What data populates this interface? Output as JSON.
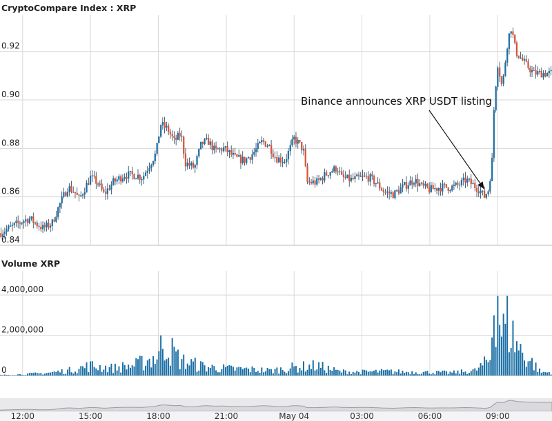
{
  "chart_data": [
    {
      "type": "candlestick",
      "title": "CryptoCompare Index : XRP",
      "ylim": [
        0.84,
        0.935
      ],
      "y_ticks": [
        "0.84",
        "0.86",
        "0.88",
        "0.90",
        "0.92"
      ],
      "x_ticks": [
        "12:00",
        "15:00",
        "18:00",
        "21:00",
        "May 04",
        "03:00",
        "06:00",
        "09:00"
      ],
      "x_range_hours": [
        11,
        35.4
      ],
      "grid": true,
      "colors": {
        "up": "#1f6fa3",
        "down": "#d8553a",
        "wick": "#1f3a52"
      },
      "close_path": [
        [
          11.0,
          0.845
        ],
        [
          11.6,
          0.848
        ],
        [
          12.0,
          0.85
        ],
        [
          12.3,
          0.851
        ],
        [
          12.6,
          0.849
        ],
        [
          12.9,
          0.847
        ],
        [
          13.3,
          0.849
        ],
        [
          13.6,
          0.856
        ],
        [
          14.0,
          0.864
        ],
        [
          14.3,
          0.862
        ],
        [
          14.5,
          0.859
        ],
        [
          15.0,
          0.868
        ],
        [
          15.3,
          0.866
        ],
        [
          15.6,
          0.861
        ],
        [
          16.0,
          0.866
        ],
        [
          16.5,
          0.869
        ],
        [
          17.0,
          0.869
        ],
        [
          17.3,
          0.868
        ],
        [
          17.6,
          0.873
        ],
        [
          17.9,
          0.878
        ],
        [
          18.1,
          0.89
        ],
        [
          18.4,
          0.888
        ],
        [
          18.7,
          0.883
        ],
        [
          19.0,
          0.886
        ],
        [
          19.2,
          0.874
        ],
        [
          19.6,
          0.872
        ],
        [
          19.9,
          0.882
        ],
        [
          20.2,
          0.883
        ],
        [
          20.5,
          0.879
        ],
        [
          20.9,
          0.88
        ],
        [
          21.4,
          0.876
        ],
        [
          21.8,
          0.875
        ],
        [
          22.2,
          0.878
        ],
        [
          22.6,
          0.883
        ],
        [
          22.9,
          0.881
        ],
        [
          23.2,
          0.876
        ],
        [
          23.6,
          0.875
        ],
        [
          24.0,
          0.884
        ],
        [
          24.3,
          0.881
        ],
        [
          24.45,
          0.878
        ],
        [
          24.55,
          0.866
        ],
        [
          25.0,
          0.866
        ],
        [
          25.5,
          0.87
        ],
        [
          25.9,
          0.872
        ],
        [
          26.1,
          0.868
        ],
        [
          26.5,
          0.867
        ],
        [
          27.0,
          0.868
        ],
        [
          27.3,
          0.868
        ],
        [
          27.6,
          0.866
        ],
        [
          28.0,
          0.862
        ],
        [
          28.4,
          0.861
        ],
        [
          28.8,
          0.864
        ],
        [
          29.3,
          0.867
        ],
        [
          29.7,
          0.864
        ],
        [
          30.0,
          0.863
        ],
        [
          30.5,
          0.864
        ],
        [
          31.0,
          0.864
        ],
        [
          31.3,
          0.865
        ],
        [
          31.6,
          0.867
        ],
        [
          31.9,
          0.865
        ],
        [
          32.2,
          0.863
        ],
        [
          32.4,
          0.86
        ],
        [
          32.6,
          0.863
        ],
        [
          32.75,
          0.875
        ],
        [
          32.85,
          0.9
        ],
        [
          33.0,
          0.915
        ],
        [
          33.2,
          0.905
        ],
        [
          33.45,
          0.925
        ],
        [
          33.6,
          0.93
        ],
        [
          33.8,
          0.92
        ],
        [
          34.2,
          0.915
        ],
        [
          34.6,
          0.911
        ]
      ],
      "annotation": {
        "text": "Binance announces XRP USDT listing",
        "x": 32.4,
        "y": 0.861
      }
    },
    {
      "type": "bar",
      "title": "Volume XRP",
      "ylim": [
        0,
        5200000
      ],
      "y_ticks": [
        "0",
        "2,000,000",
        "4,000,000"
      ],
      "bar_color": "#1a6fa5",
      "volume_profile": [
        [
          11.0,
          30000
        ],
        [
          12.0,
          80000
        ],
        [
          13.0,
          150000
        ],
        [
          14.0,
          300000
        ],
        [
          15.0,
          600000
        ],
        [
          16.0,
          450000
        ],
        [
          17.0,
          650000
        ],
        [
          18.0,
          1200000
        ],
        [
          18.2,
          2100000
        ],
        [
          19.0,
          900000
        ],
        [
          20.0,
          550000
        ],
        [
          21.0,
          420000
        ],
        [
          22.0,
          380000
        ],
        [
          23.0,
          300000
        ],
        [
          24.0,
          500000
        ],
        [
          25.0,
          600000
        ],
        [
          26.0,
          250000
        ],
        [
          27.0,
          220000
        ],
        [
          28.0,
          260000
        ],
        [
          29.0,
          220000
        ],
        [
          30.0,
          200000
        ],
        [
          31.0,
          180000
        ],
        [
          32.0,
          300000
        ],
        [
          32.7,
          1000000
        ],
        [
          32.8,
          5000000
        ],
        [
          33.0,
          5000000
        ],
        [
          33.2,
          2500000
        ],
        [
          33.4,
          3300000
        ],
        [
          33.8,
          2000000
        ],
        [
          34.2,
          1200000
        ],
        [
          34.6,
          700000
        ],
        [
          34.9,
          200000
        ]
      ]
    }
  ]
}
